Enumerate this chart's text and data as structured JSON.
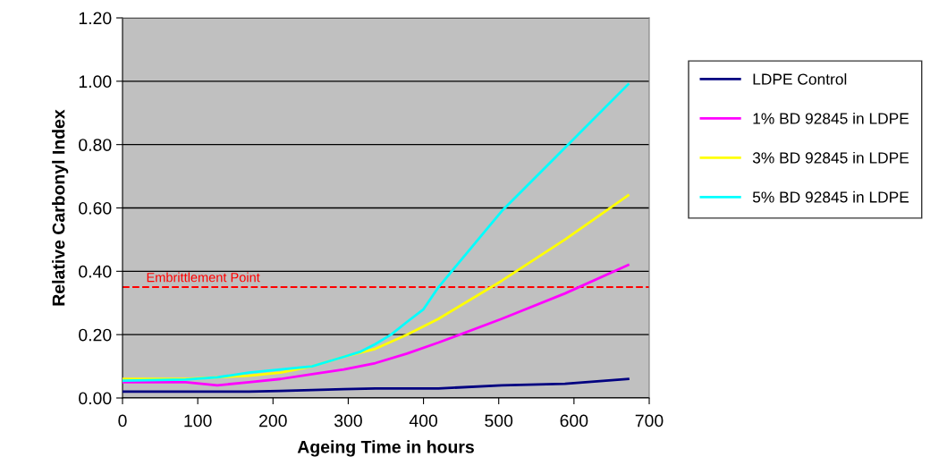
{
  "chart_data": {
    "type": "line",
    "xlabel": "Ageing Time in hours",
    "ylabel": "Relative Carbonyl Index",
    "xlim": [
      0,
      700
    ],
    "xticks": [
      0,
      100,
      200,
      300,
      400,
      500,
      600,
      700
    ],
    "ylim": [
      0,
      1.2
    ],
    "yticks": [
      {
        "value": 0,
        "label": "0.00"
      },
      {
        "value": 0.2,
        "label": "0.20"
      },
      {
        "value": 0.4,
        "label": "0.40"
      },
      {
        "value": 0.6,
        "label": "0.60"
      },
      {
        "value": 0.8,
        "label": "0.80"
      },
      {
        "value": 1.0,
        "label": "1.00"
      },
      {
        "value": 1.2,
        "label": "1.20"
      }
    ],
    "grid": "y",
    "legend": "right",
    "marker": "none",
    "line_style": "solid",
    "series": [
      {
        "name": "LDPE Control",
        "color": "#000080",
        "x": [
          0,
          84,
          126,
          168,
          210,
          252,
          294,
          336,
          378,
          420,
          504,
          588,
          672
        ],
        "values": [
          0.02,
          0.02,
          0.02,
          0.02,
          0.022,
          0.025,
          0.028,
          0.03,
          0.03,
          0.03,
          0.04,
          0.045,
          0.06
        ]
      },
      {
        "name": "1% BD 92845 in LDPE",
        "color": "#ff00ff",
        "x": [
          0,
          84,
          126,
          168,
          210,
          252,
          294,
          336,
          378,
          420,
          504,
          588,
          672
        ],
        "values": [
          0.05,
          0.05,
          0.04,
          0.05,
          0.06,
          0.075,
          0.09,
          0.11,
          0.14,
          0.175,
          0.25,
          0.33,
          0.42
        ]
      },
      {
        "name": "3% BD 92845 in LDPE",
        "color": "#ffff00",
        "x": [
          0,
          84,
          126,
          168,
          210,
          252,
          294,
          336,
          378,
          420,
          504,
          588,
          672
        ],
        "values": [
          0.06,
          0.06,
          0.065,
          0.07,
          0.08,
          0.1,
          0.13,
          0.155,
          0.2,
          0.25,
          0.37,
          0.5,
          0.64
        ]
      },
      {
        "name": "5% BD 92845 in LDPE",
        "color": "#00ffff",
        "x": [
          0,
          84,
          126,
          168,
          210,
          252,
          294,
          315,
          336,
          357,
          378,
          400,
          420,
          504,
          588,
          672
        ],
        "values": [
          0.055,
          0.058,
          0.065,
          0.08,
          0.09,
          0.1,
          0.13,
          0.145,
          0.17,
          0.2,
          0.24,
          0.28,
          0.35,
          0.59,
          0.79,
          0.99
        ]
      }
    ],
    "ref_lines": [
      {
        "axis": "y",
        "value": 0.35,
        "label": "Embrittlement Point",
        "color": "#ff0000",
        "line_style": "dashed"
      }
    ]
  }
}
